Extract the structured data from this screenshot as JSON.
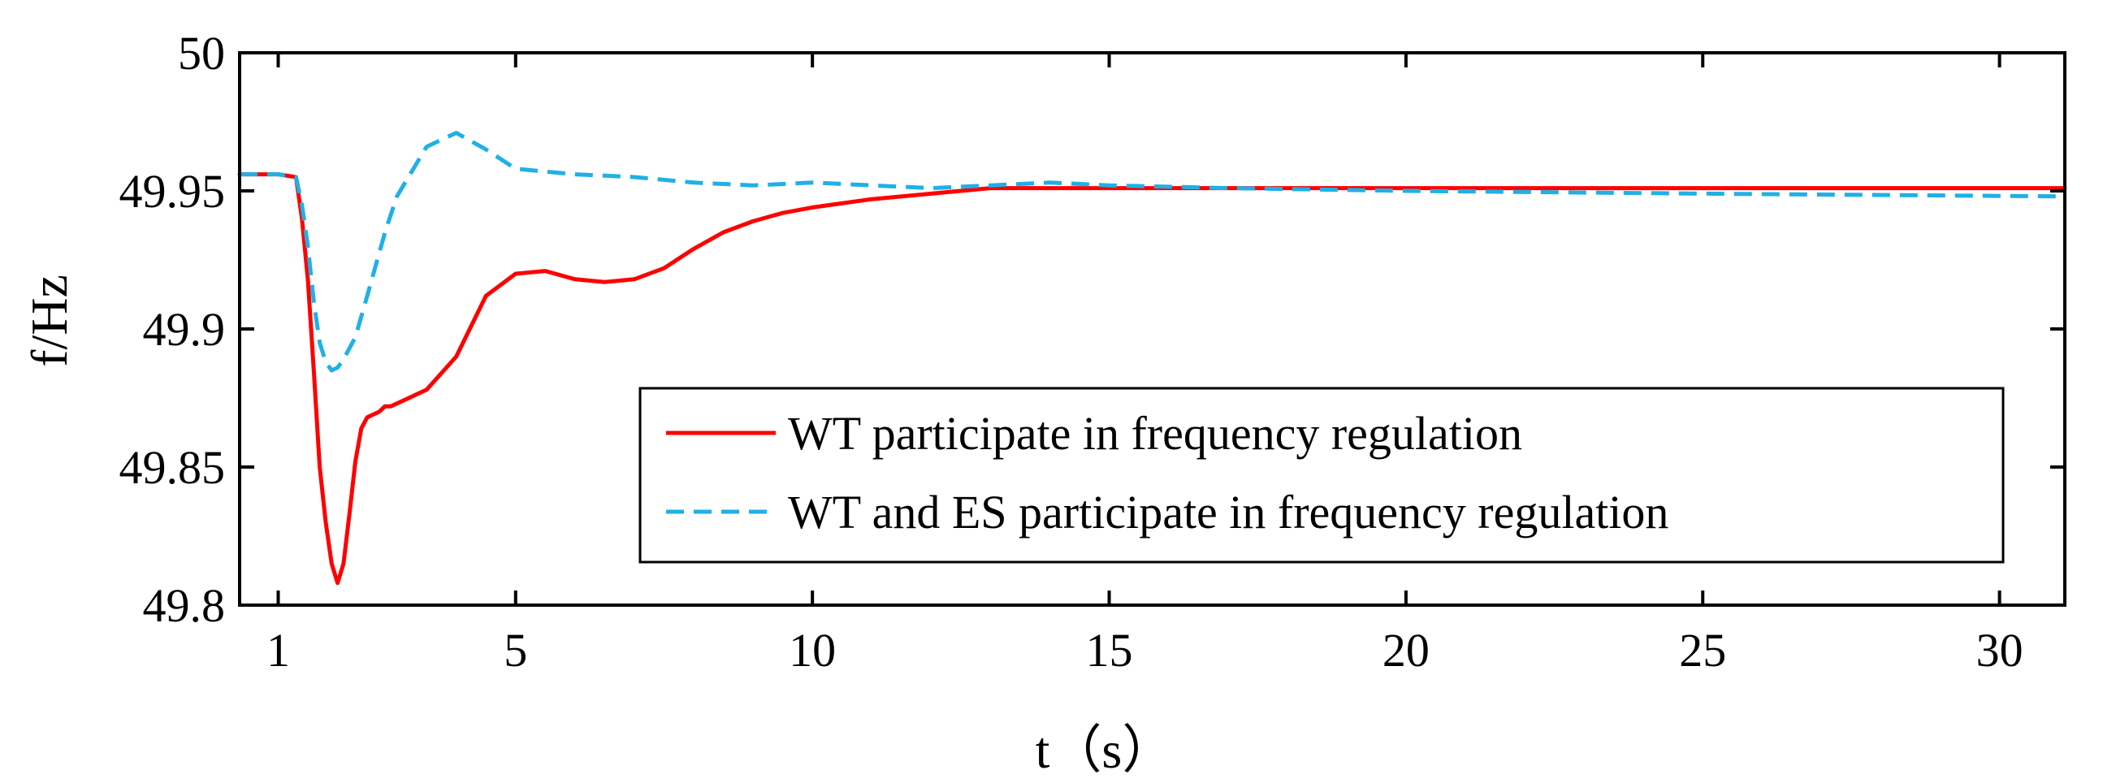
{
  "chart_data": {
    "type": "line",
    "title": "",
    "xlabel": "t（s）",
    "ylabel": "f/Hz",
    "xlim": [
      0.35,
      31.1
    ],
    "ylim": [
      49.8,
      50.0
    ],
    "xticks": [
      1,
      5,
      10,
      15,
      20,
      25,
      30
    ],
    "xtick_labels": [
      "1",
      "5",
      "10",
      "15",
      "20",
      "25",
      "30"
    ],
    "yticks": [
      49.8,
      49.85,
      49.9,
      49.95,
      50.0
    ],
    "ytick_labels": [
      "49.8",
      "49.85",
      "49.9",
      "49.95",
      "50"
    ],
    "grid": false,
    "legend_position": "bottom-right",
    "series": [
      {
        "name": "WT participate in frequency regulation",
        "color": "#ff0000",
        "style": "solid",
        "x": [
          0.35,
          1.0,
          1.3,
          1.4,
          1.5,
          1.6,
          1.7,
          1.8,
          1.9,
          2.0,
          2.1,
          2.2,
          2.3,
          2.4,
          2.5,
          2.6,
          2.7,
          2.8,
          2.9,
          3.0,
          3.5,
          4.0,
          4.5,
          5.0,
          5.5,
          6.0,
          6.5,
          7.0,
          7.5,
          8.0,
          8.5,
          9.0,
          9.5,
          10.0,
          11.0,
          12.0,
          13.0,
          14.0,
          15.0,
          17.0,
          20.0,
          25.0,
          31.1
        ],
        "y": [
          49.956,
          49.956,
          49.955,
          49.94,
          49.918,
          49.885,
          49.85,
          49.83,
          49.815,
          49.808,
          49.815,
          49.833,
          49.852,
          49.864,
          49.868,
          49.869,
          49.87,
          49.872,
          49.872,
          49.873,
          49.878,
          49.89,
          49.912,
          49.92,
          49.921,
          49.918,
          49.917,
          49.918,
          49.922,
          49.929,
          49.935,
          49.939,
          49.942,
          49.944,
          49.947,
          49.949,
          49.951,
          49.951,
          49.951,
          49.951,
          49.951,
          49.951,
          49.951
        ]
      },
      {
        "name": "WT and ES participate in frequency regulation",
        "color": "#1fb0e6",
        "style": "dashed",
        "x": [
          0.35,
          1.0,
          1.3,
          1.4,
          1.5,
          1.6,
          1.7,
          1.8,
          1.9,
          2.0,
          2.1,
          2.3,
          2.5,
          2.8,
          3.0,
          3.5,
          4.0,
          4.5,
          5.0,
          5.5,
          6.0,
          7.0,
          8.0,
          9.0,
          10.0,
          11.0,
          12.0,
          13.0,
          14.0,
          15.0,
          17.0,
          20.0,
          25.0,
          31.1
        ],
        "y": [
          49.956,
          49.956,
          49.955,
          49.945,
          49.93,
          49.91,
          49.895,
          49.888,
          49.885,
          49.886,
          49.889,
          49.897,
          49.912,
          49.935,
          49.948,
          49.966,
          49.971,
          49.965,
          49.958,
          49.957,
          49.956,
          49.955,
          49.953,
          49.952,
          49.953,
          49.952,
          49.951,
          49.952,
          49.953,
          49.952,
          49.951,
          49.95,
          49.949,
          49.948
        ]
      }
    ]
  }
}
